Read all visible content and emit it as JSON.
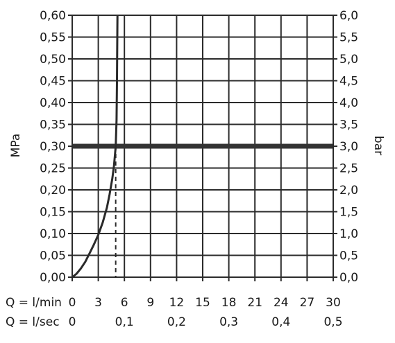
{
  "chart_data": {
    "type": "line",
    "title": "",
    "ylabel_left": "MPa",
    "ylabel_right": "bar",
    "ylim_left": [
      0,
      0.6
    ],
    "ylim_right": [
      0,
      6.0
    ],
    "xlim_lmin": [
      0,
      30
    ],
    "left_ticks": [
      "0,00",
      "0,05",
      "0,10",
      "0,15",
      "0,20",
      "0,25",
      "0,30",
      "0,35",
      "0,40",
      "0,45",
      "0,50",
      "0,55",
      "0,60"
    ],
    "right_ticks": [
      "0,0",
      "0,5",
      "1,0",
      "1,5",
      "2,0",
      "2,5",
      "3,0",
      "3,5",
      "4,0",
      "4,5",
      "5,0",
      "5,5",
      "6,0"
    ],
    "x_lmin_label": "Q = l/min",
    "x_lmin_ticks": [
      "0",
      "3",
      "6",
      "9",
      "12",
      "15",
      "18",
      "21",
      "24",
      "27",
      "30"
    ],
    "x_lsec_label": "Q = l/sec",
    "x_lsec_ticks": [
      {
        "label": "0",
        "value": 0
      },
      {
        "label": "0,1",
        "value": 6
      },
      {
        "label": "0,2",
        "value": 12
      },
      {
        "label": "0,3",
        "value": 18
      },
      {
        "label": "0,4",
        "value": 24
      },
      {
        "label": "0,5",
        "value": 30
      }
    ],
    "grid": true,
    "series": [
      {
        "x": [
          0,
          0.5,
          1,
          1.5,
          2,
          2.5,
          3,
          3.5,
          4,
          4.3,
          4.6,
          4.8,
          5.0,
          5.1,
          5.15,
          5.2
        ],
        "y": [
          0,
          0.008,
          0.02,
          0.035,
          0.055,
          0.075,
          0.097,
          0.125,
          0.16,
          0.19,
          0.225,
          0.255,
          0.3,
          0.36,
          0.45,
          0.6
        ],
        "color": "#2a2a2a"
      }
    ],
    "reference_line": {
      "y": 0.3,
      "color": "#333333"
    },
    "marker_line": {
      "x": 5,
      "y_top": 0.3,
      "style": "dashed"
    }
  }
}
